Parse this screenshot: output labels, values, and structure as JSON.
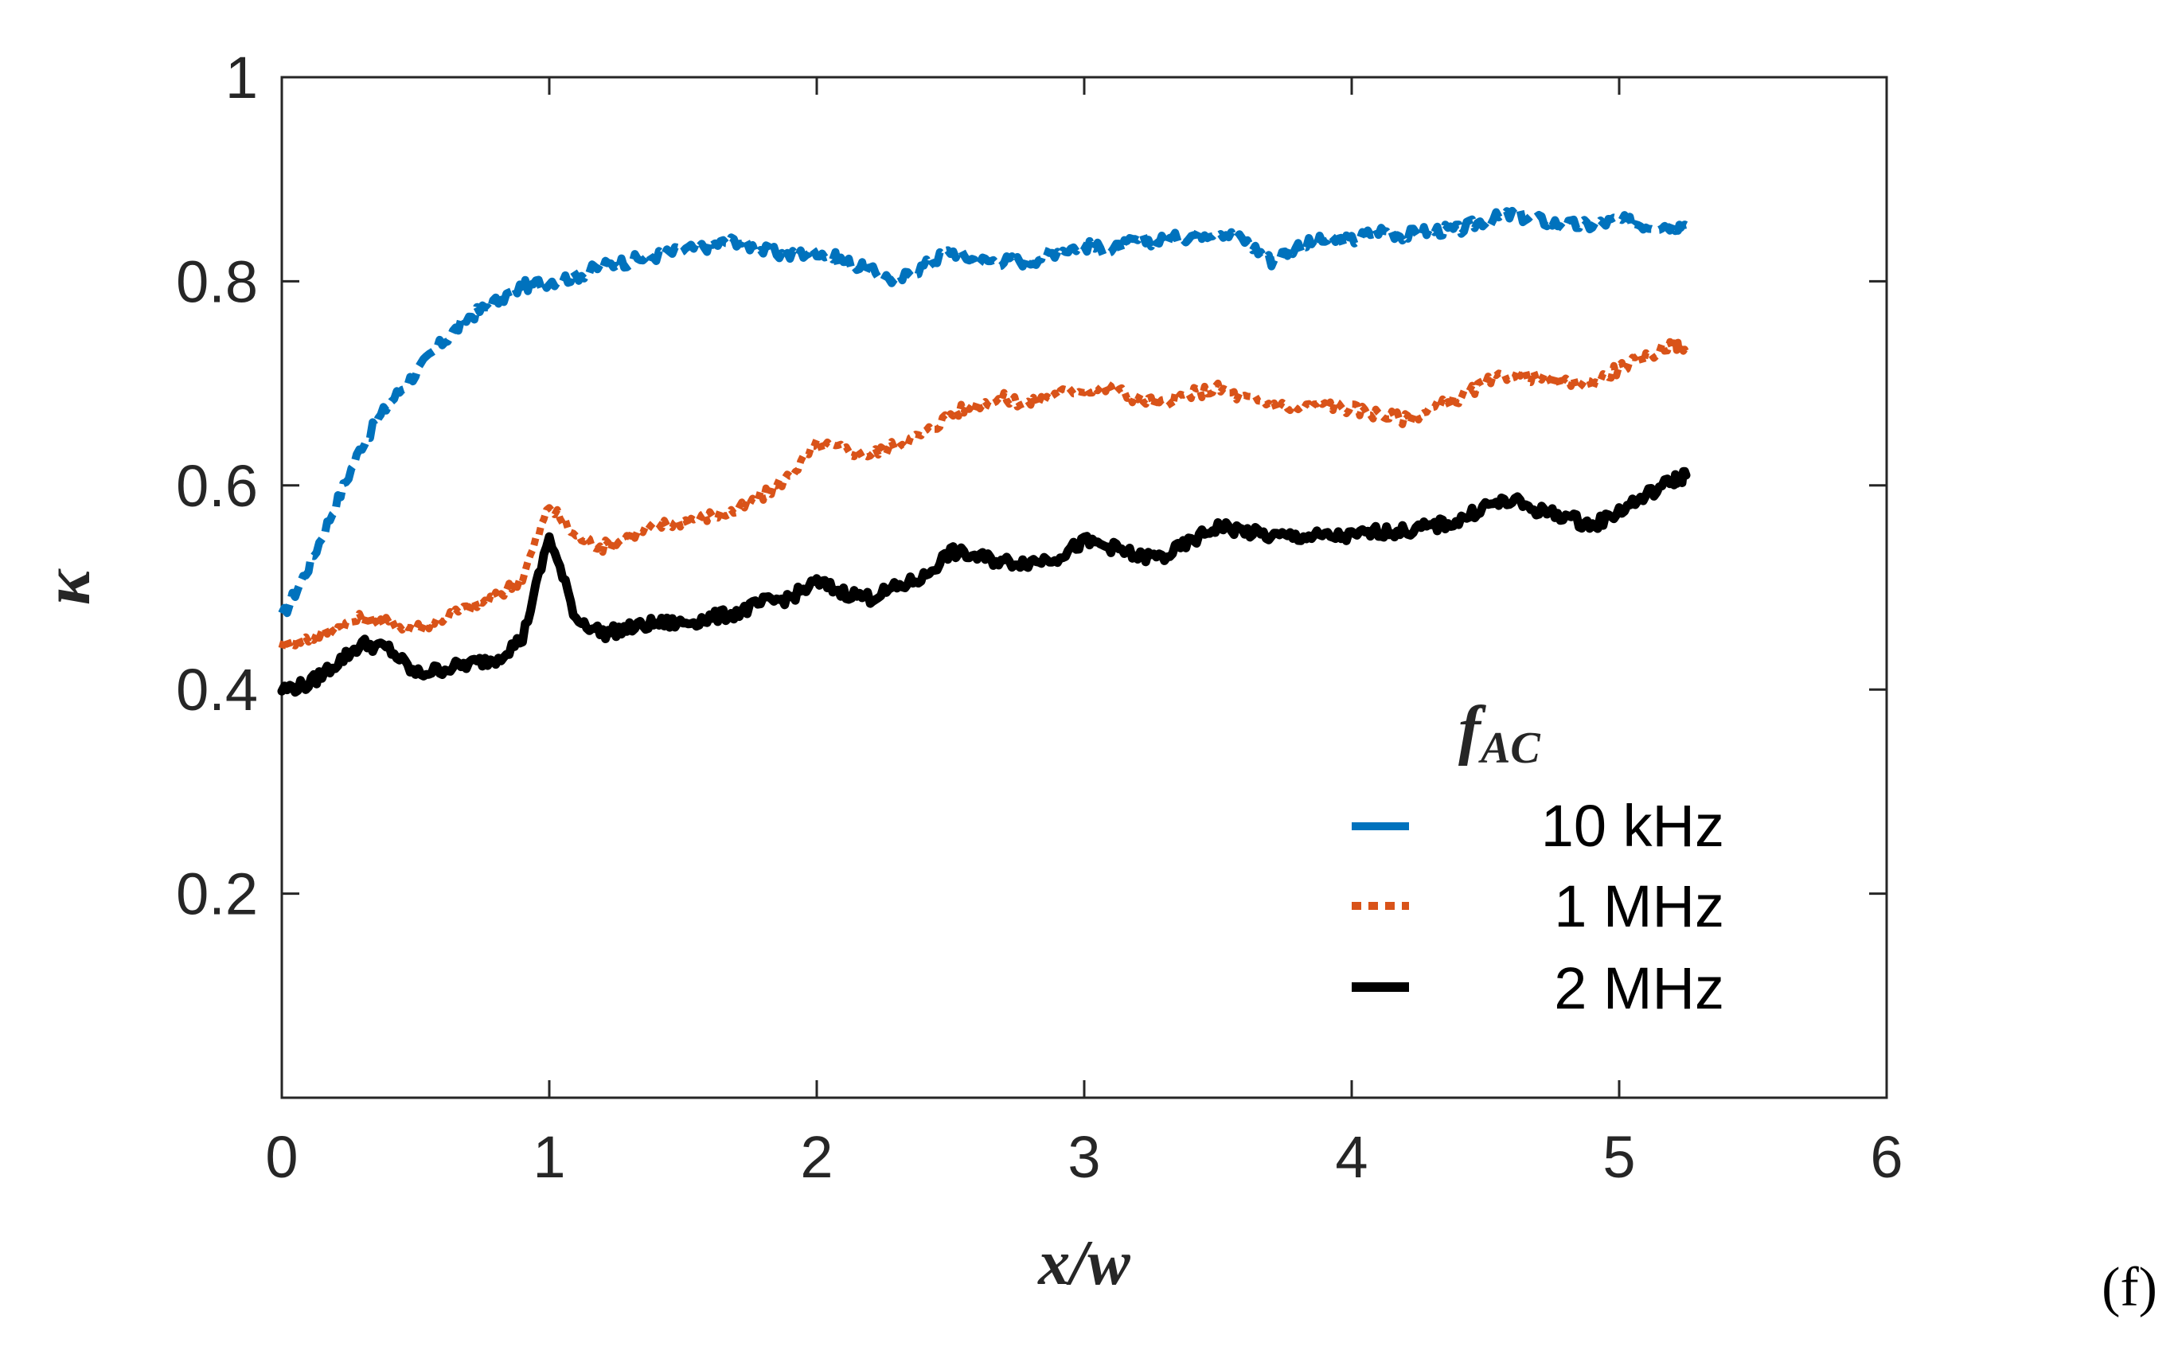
{
  "chart_data": {
    "type": "line",
    "panel_label": "(f)",
    "xlabel": "x/w",
    "ylabel": "κ",
    "xlim": [
      0,
      6
    ],
    "ylim": [
      0,
      1
    ],
    "xticks": [
      0,
      1,
      2,
      3,
      4,
      5,
      6
    ],
    "yticks": [
      0.2,
      0.4,
      0.6,
      0.8,
      1
    ],
    "xtick_labels": [
      "0",
      "1",
      "2",
      "3",
      "4",
      "5",
      "6"
    ],
    "ytick_labels": [
      "0.2",
      "0.4",
      "0.6",
      "0.8",
      "1"
    ],
    "grid": false,
    "legend": {
      "title_main": "f",
      "title_sub": "AC",
      "placement": "bottom-right"
    },
    "x": [
      0,
      0.1,
      0.2,
      0.3,
      0.4,
      0.5,
      0.6,
      0.7,
      0.8,
      0.9,
      1.0,
      1.1,
      1.2,
      1.3,
      1.4,
      1.5,
      1.6,
      1.7,
      1.8,
      1.9,
      2.0,
      2.1,
      2.2,
      2.3,
      2.4,
      2.5,
      2.6,
      2.7,
      2.8,
      2.9,
      3.0,
      3.1,
      3.2,
      3.3,
      3.4,
      3.5,
      3.6,
      3.7,
      3.8,
      3.9,
      4.0,
      4.1,
      4.2,
      4.3,
      4.4,
      4.5,
      4.6,
      4.7,
      4.8,
      4.9,
      5.0,
      5.1,
      5.2,
      5.25
    ],
    "series": [
      {
        "name": "10 kHz",
        "color": "#0072BD",
        "style": "dashed",
        "values": [
          0.47,
          0.52,
          0.58,
          0.64,
          0.68,
          0.71,
          0.74,
          0.765,
          0.78,
          0.795,
          0.8,
          0.805,
          0.815,
          0.82,
          0.825,
          0.83,
          0.835,
          0.84,
          0.83,
          0.825,
          0.83,
          0.82,
          0.81,
          0.8,
          0.815,
          0.83,
          0.82,
          0.82,
          0.82,
          0.83,
          0.835,
          0.83,
          0.84,
          0.84,
          0.845,
          0.85,
          0.84,
          0.82,
          0.835,
          0.84,
          0.84,
          0.85,
          0.845,
          0.85,
          0.85,
          0.86,
          0.865,
          0.86,
          0.855,
          0.855,
          0.86,
          0.855,
          0.855,
          0.855
        ]
      },
      {
        "name": "1 MHz",
        "color": "#D95319",
        "style": "dotted",
        "values": [
          0.445,
          0.45,
          0.46,
          0.47,
          0.465,
          0.46,
          0.47,
          0.48,
          0.49,
          0.51,
          0.58,
          0.55,
          0.54,
          0.55,
          0.56,
          0.565,
          0.57,
          0.575,
          0.59,
          0.61,
          0.64,
          0.635,
          0.63,
          0.64,
          0.65,
          0.67,
          0.68,
          0.685,
          0.68,
          0.69,
          0.695,
          0.695,
          0.685,
          0.68,
          0.69,
          0.695,
          0.685,
          0.68,
          0.675,
          0.68,
          0.675,
          0.67,
          0.665,
          0.675,
          0.685,
          0.7,
          0.71,
          0.705,
          0.7,
          0.7,
          0.715,
          0.725,
          0.74,
          0.73
        ]
      },
      {
        "name": "2 MHz",
        "color": "#000000",
        "style": "solid",
        "values": [
          0.4,
          0.405,
          0.425,
          0.445,
          0.44,
          0.415,
          0.42,
          0.425,
          0.43,
          0.45,
          0.55,
          0.47,
          0.455,
          0.46,
          0.465,
          0.465,
          0.47,
          0.475,
          0.485,
          0.49,
          0.505,
          0.495,
          0.49,
          0.5,
          0.51,
          0.535,
          0.53,
          0.525,
          0.525,
          0.53,
          0.545,
          0.54,
          0.53,
          0.53,
          0.545,
          0.56,
          0.555,
          0.55,
          0.55,
          0.55,
          0.55,
          0.555,
          0.555,
          0.56,
          0.565,
          0.58,
          0.585,
          0.575,
          0.57,
          0.56,
          0.575,
          0.59,
          0.605,
          0.61
        ]
      }
    ]
  }
}
